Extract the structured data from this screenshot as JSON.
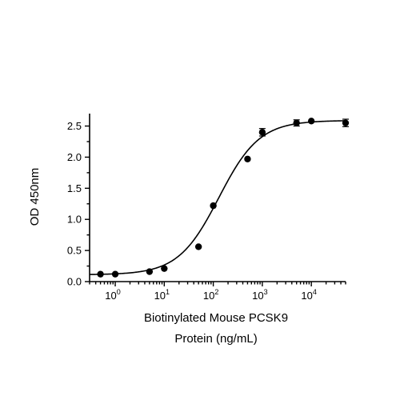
{
  "chart_data": {
    "type": "scatter",
    "title": "",
    "xlabel_line1": "Biotinylated Mouse PCSK9",
    "xlabel_line2": "Protein (ng/mL)",
    "ylabel": "OD 450nm",
    "x_scale": "log",
    "xlim": [
      0.3,
      50000
    ],
    "ylim": [
      0,
      2.7
    ],
    "y_ticks": [
      "0.0",
      "0.5",
      "1.0",
      "1.5",
      "2.0",
      "2.5"
    ],
    "x_major_ticks": [
      {
        "base": "10",
        "exp": "0"
      },
      {
        "base": "10",
        "exp": "1"
      },
      {
        "base": "10",
        "exp": "2"
      },
      {
        "base": "10",
        "exp": "3"
      },
      {
        "base": "10",
        "exp": "4"
      }
    ],
    "grid": false,
    "legend": "none",
    "series": [
      {
        "points": [
          {
            "x": 0.5,
            "y": 0.12,
            "err": 0.0
          },
          {
            "x": 1,
            "y": 0.12,
            "err": 0.0
          },
          {
            "x": 5,
            "y": 0.16,
            "err": 0.0
          },
          {
            "x": 10,
            "y": 0.21,
            "err": 0.0
          },
          {
            "x": 50,
            "y": 0.56,
            "err": 0.0
          },
          {
            "x": 100,
            "y": 1.22,
            "err": 0.0
          },
          {
            "x": 500,
            "y": 1.97,
            "err": 0.0
          },
          {
            "x": 1000,
            "y": 2.4,
            "err": 0.06
          },
          {
            "x": 5000,
            "y": 2.55,
            "err": 0.05
          },
          {
            "x": 10000,
            "y": 2.58,
            "err": 0.0
          },
          {
            "x": 50000,
            "y": 2.55,
            "err": 0.06
          }
        ],
        "fit": {
          "model": "4PL",
          "bottom": 0.11,
          "top": 2.59,
          "ec50": 130,
          "hill": 1.05
        }
      }
    ]
  }
}
